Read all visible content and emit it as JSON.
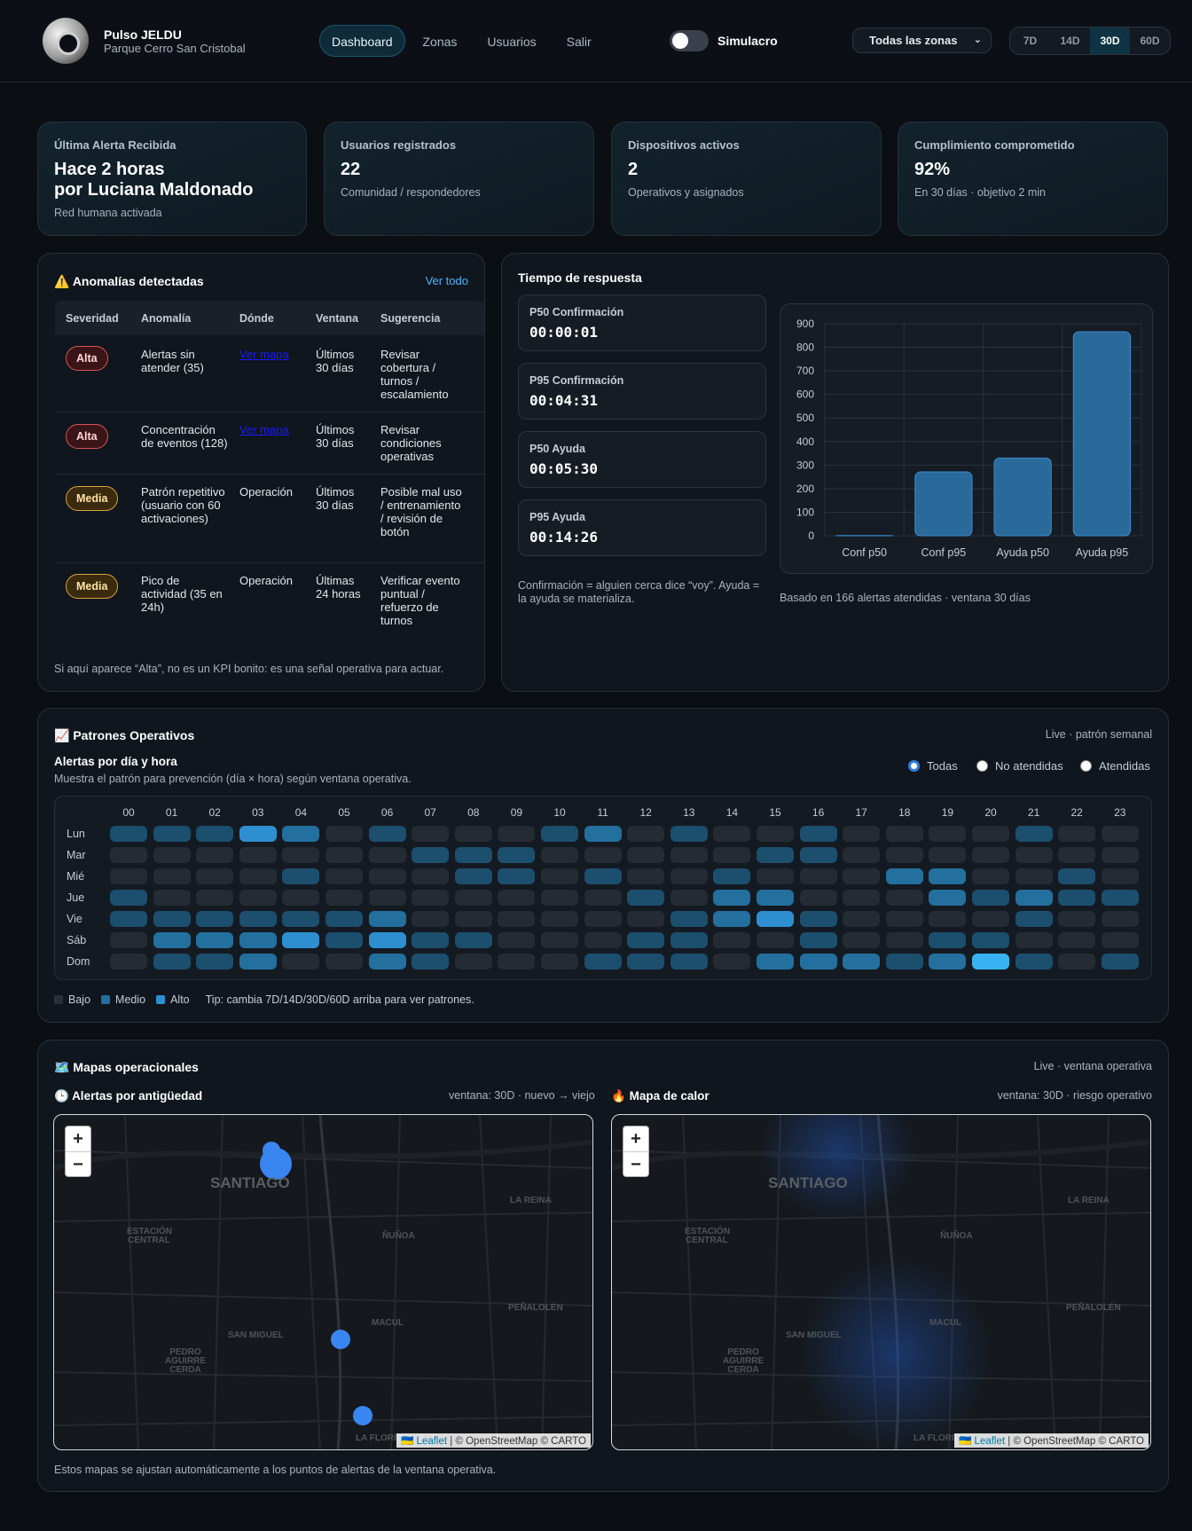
{
  "brand": {
    "name": "Pulso JELDU",
    "subtitle": "Parque Cerro San Cristobal"
  },
  "nav": [
    "Dashboard",
    "Zonas",
    "Usuarios",
    "Salir"
  ],
  "simulacro": "Simulacro",
  "zone_select": "Todas las zonas",
  "ranges": [
    "7D",
    "14D",
    "30D",
    "60D"
  ],
  "kpis": [
    {
      "label": "Última Alerta Recibida",
      "value_line1": "Hace 2 horas",
      "value_line2": "por Luciana Maldonado",
      "sub": "Red humana activada"
    },
    {
      "label": "Usuarios registrados",
      "value": "22",
      "sub": "Comunidad / respondedores"
    },
    {
      "label": "Dispositivos activos",
      "value": "2",
      "sub": "Operativos y asignados"
    },
    {
      "label": "Cumplimiento comprometido",
      "value": "92%",
      "sub": "En 30 días · objetivo 2 min"
    }
  ],
  "anomalies": {
    "icon": "⚠️",
    "title": "Anomalías detectadas",
    "view_all": "Ver todo",
    "headers": [
      "Severidad",
      "Anomalía",
      "Dónde",
      "Ventana",
      "Sugerencia"
    ],
    "rows": [
      {
        "sev": "Alta",
        "kind": "alta",
        "anomaly": "Alertas sin atender (35)",
        "where": "Ver mapa",
        "window": "Últimos 30 días",
        "suggestion": "Revisar cobertura / turnos / escalamiento"
      },
      {
        "sev": "Alta",
        "kind": "alta",
        "anomaly": "Concentración de eventos (128)",
        "where": "Ver mapa",
        "window": "Últimos 30 días",
        "suggestion": "Revisar condiciones operativas"
      },
      {
        "sev": "Media",
        "kind": "media",
        "anomaly": "Patrón repetitivo (usuario con 60 activaciones)",
        "where": "Operación",
        "window": "Últimos 30 días",
        "suggestion": "Posible mal uso / entrenamiento / revisión de botón"
      },
      {
        "sev": "Media",
        "kind": "media",
        "anomaly": "Pico de actividad (35 en 24h)",
        "where": "Operación",
        "window": "Últimas 24 horas",
        "suggestion": "Verificar evento puntual / refuerzo de turnos"
      }
    ],
    "footnote": "Si aquí aparece “Alta”, no es un KPI bonito: es una señal operativa para actuar."
  },
  "response": {
    "title": "Tiempo de respuesta",
    "stats": [
      {
        "label": "P50 Confirmación",
        "value": "00:00:01"
      },
      {
        "label": "P95 Confirmación",
        "value": "00:04:31"
      },
      {
        "label": "P50 Ayuda",
        "value": "00:05:30"
      },
      {
        "label": "P95 Ayuda",
        "value": "00:14:26"
      }
    ],
    "note": "Confirmación = alguien cerca dice “voy”. Ayuda = la ayuda se materializa.",
    "basis": "Basado en 166 alertas atendidas · ventana 30 días"
  },
  "chart_data": {
    "type": "bar",
    "categories": [
      "Conf p50",
      "Conf p95",
      "Ayuda p50",
      "Ayuda p95"
    ],
    "values": [
      1,
      271,
      330,
      866
    ],
    "ylim": [
      0,
      900
    ],
    "yticks": [
      0,
      100,
      200,
      300,
      400,
      500,
      600,
      700,
      800,
      900
    ],
    "color": "#2a6a9a"
  },
  "patterns": {
    "icon": "📈",
    "title": "Patrones Operativos",
    "live": "Live · patrón semanal",
    "subtitle": "Alertas por día y hora",
    "desc": "Muestra el patrón para prevención (día × hora) según ventana operativa.",
    "filters": [
      "Todas",
      "No atendidas",
      "Atendidas"
    ],
    "days": [
      "Lun",
      "Mar",
      "Mié",
      "Jue",
      "Vie",
      "Sáb",
      "Dom"
    ],
    "hours": [
      "00",
      "01",
      "02",
      "03",
      "04",
      "05",
      "06",
      "07",
      "08",
      "09",
      "10",
      "11",
      "12",
      "13",
      "14",
      "15",
      "16",
      "17",
      "18",
      "19",
      "20",
      "21",
      "22",
      "23"
    ],
    "levels": [
      [
        2,
        2,
        2,
        4,
        3,
        1,
        2,
        1,
        1,
        1,
        2,
        3,
        1,
        2,
        1,
        1,
        2,
        1,
        1,
        1,
        1,
        2,
        1,
        1
      ],
      [
        1,
        1,
        1,
        1,
        1,
        1,
        1,
        2,
        2,
        2,
        1,
        1,
        1,
        1,
        1,
        2,
        2,
        1,
        1,
        1,
        1,
        1,
        1,
        1
      ],
      [
        1,
        1,
        1,
        1,
        2,
        1,
        1,
        1,
        2,
        2,
        1,
        2,
        1,
        1,
        2,
        1,
        1,
        1,
        3,
        3,
        1,
        1,
        2,
        1
      ],
      [
        2,
        1,
        1,
        1,
        1,
        1,
        1,
        1,
        1,
        1,
        1,
        1,
        2,
        1,
        3,
        3,
        1,
        1,
        1,
        3,
        2,
        3,
        2,
        2
      ],
      [
        2,
        2,
        2,
        2,
        2,
        2,
        3,
        1,
        1,
        1,
        1,
        1,
        1,
        2,
        3,
        4,
        2,
        1,
        1,
        1,
        1,
        2,
        1,
        1
      ],
      [
        1,
        3,
        3,
        3,
        4,
        2,
        4,
        2,
        2,
        1,
        1,
        1,
        2,
        2,
        1,
        1,
        2,
        1,
        1,
        2,
        2,
        1,
        1,
        1
      ],
      [
        1,
        2,
        2,
        3,
        1,
        1,
        3,
        2,
        1,
        1,
        1,
        2,
        2,
        2,
        1,
        3,
        3,
        3,
        2,
        3,
        5,
        2,
        1,
        2
      ]
    ],
    "level_colors": [
      "#21272f",
      "#252b33",
      "#1c4e6e",
      "#236f9e",
      "#2d8fd0",
      "#38b2f0"
    ],
    "legend": [
      "Bajo",
      "Medio",
      "Alto"
    ],
    "tip": "Tip: cambia 7D/14D/30D/60D arriba para ver patrones."
  },
  "maps": {
    "icon": "🗺️",
    "title": "Mapas operacionales",
    "live": "Live · ventana operativa",
    "age_icon": "🕒",
    "age_title": "Alertas por antigüedad",
    "age_meta": "ventana: 30D · nuevo → viejo",
    "heat_icon": "🔥",
    "heat_title": "Mapa de calor",
    "heat_meta": "ventana: 30D · riesgo operativo",
    "zoom_in": "+",
    "zoom_out": "−",
    "attribution_flag": "🇺🇦",
    "attribution_link": "Leaflet",
    "attribution_rest": " | © OpenStreetMap © CARTO",
    "labels": {
      "santiago": "SANTIAGO",
      "estacion": "ESTACIÓN CENTRAL",
      "nunoa": "ÑUÑOA",
      "lareina": "LA REINA",
      "penalolen": "PEÑALOLÉN",
      "sanmiguel": "SAN MIGUEL",
      "macul": "MACUL",
      "pac": "PEDRO AGUIRRE CERDA",
      "laflorida": "LA FLORIDA"
    },
    "footnote": "Estos mapas se ajustan automáticamente a los puntos de alertas de la ventana operativa."
  }
}
